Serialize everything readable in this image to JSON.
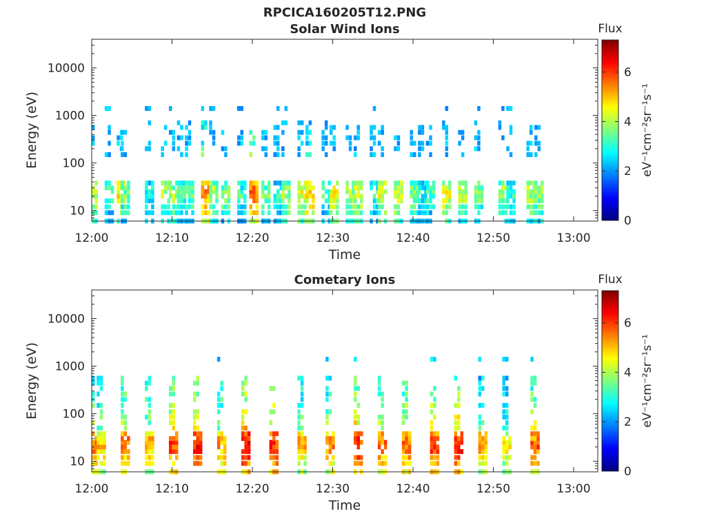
{
  "figure_title": "RPCICA160205T12.PNG",
  "colormap": [
    "#00007f",
    "#0000ff",
    "#007fff",
    "#00ffff",
    "#7fff7f",
    "#ffff00",
    "#ff7f00",
    "#ff0000",
    "#7f0000"
  ],
  "chart_data": [
    {
      "type": "heatmap",
      "title": "Solar Wind Ions",
      "xlabel": "Time",
      "ylabel": "Energy (eV)",
      "x_unit": "minutes after 12:00",
      "xlim": [
        0,
        63
      ],
      "x_ticks": [
        0,
        10,
        20,
        30,
        40,
        50,
        60
      ],
      "x_tick_labels": [
        "12:00",
        "12:10",
        "12:20",
        "12:30",
        "12:40",
        "12:50",
        "13:00"
      ],
      "y_scale": "log",
      "ylim": [
        6,
        40000
      ],
      "y_ticks": [
        10,
        100,
        1000,
        10000
      ],
      "y_tick_labels": [
        "10",
        "100",
        "1000",
        "10000"
      ],
      "colorbar": {
        "label": "Flux",
        "units_label": "eV⁻¹cm⁻²sr⁻¹s⁻¹",
        "clim": [
          0,
          7.3
        ],
        "ticks": [
          0,
          2,
          4,
          6
        ],
        "tick_labels": [
          "0",
          "2",
          "4",
          "6"
        ]
      },
      "band_energies_eV": [
        6,
        9,
        12,
        16,
        20,
        25,
        30,
        38,
        150,
        200,
        260,
        340,
        440,
        560,
        700,
        1400
      ],
      "scan_times_min": [
        0,
        2,
        3.5,
        4,
        7,
        9,
        10,
        11,
        12,
        14,
        15,
        16.5,
        18.5,
        20,
        21.5,
        23,
        24,
        26,
        27,
        29,
        30,
        32,
        33,
        35,
        36,
        38,
        40,
        41,
        42,
        44,
        46,
        48,
        51,
        52,
        54.5,
        55.5
      ],
      "peak_log_flux": [
        4.8,
        3.8,
        5.4,
        4.2,
        3.6,
        4.6,
        4.5,
        3.9,
        4.2,
        6.0,
        4.6,
        4.3,
        3.8,
        6.3,
        4.2,
        3.7,
        4.6,
        5.1,
        5.6,
        3.9,
        5.2,
        4.6,
        5.0,
        3.8,
        5.0,
        4.9,
        4.4,
        3.6,
        3.9,
        5.1,
        4.7,
        4.3,
        4.6,
        3.9,
        4.7,
        4.5
      ]
    },
    {
      "type": "heatmap",
      "title": "Cometary Ions",
      "xlabel": "Time",
      "ylabel": "Energy (eV)",
      "x_unit": "minutes after 12:00",
      "xlim": [
        0,
        63
      ],
      "x_ticks": [
        0,
        10,
        20,
        30,
        40,
        50,
        60
      ],
      "x_tick_labels": [
        "12:00",
        "12:10",
        "12:20",
        "12:30",
        "12:40",
        "12:50",
        "13:00"
      ],
      "y_scale": "log",
      "ylim": [
        6,
        40000
      ],
      "y_ticks": [
        10,
        100,
        1000,
        10000
      ],
      "y_tick_labels": [
        "10",
        "100",
        "1000",
        "10000"
      ],
      "colorbar": {
        "label": "Flux",
        "units_label": "eV⁻¹cm⁻²sr⁻¹s⁻¹",
        "clim": [
          0,
          7.3
        ],
        "ticks": [
          0,
          2,
          4,
          6
        ],
        "tick_labels": [
          "0",
          "2",
          "4",
          "6"
        ]
      },
      "band_energies_eV": [
        6,
        9,
        12,
        16,
        20,
        25,
        30,
        38,
        50,
        65,
        85,
        110,
        150,
        200,
        260,
        340,
        440,
        560,
        1400
      ],
      "scan_times_min": [
        0,
        1,
        4,
        7,
        10,
        13,
        16,
        19,
        22.5,
        26,
        29.5,
        33,
        36,
        39,
        42.5,
        45.5,
        48.5,
        51.5,
        55
      ],
      "peak_log_flux": [
        6.4,
        5.6,
        6.3,
        5.8,
        6.6,
        6.9,
        5.9,
        7.0,
        6.7,
        5.8,
        6.0,
        6.8,
        6.2,
        6.4,
        6.6,
        6.9,
        5.8,
        5.4,
        6.3
      ]
    }
  ]
}
